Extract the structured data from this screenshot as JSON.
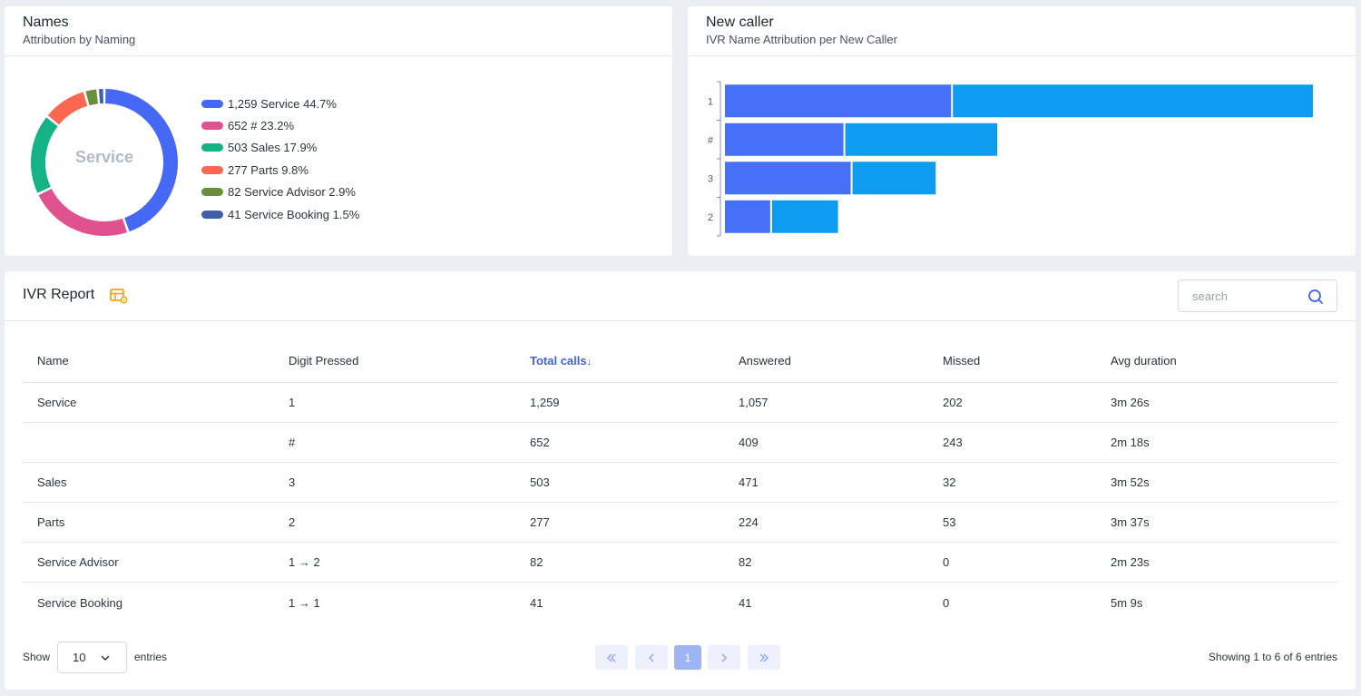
{
  "names_card": {
    "title": "Names",
    "subtitle": "Attribution by Naming",
    "donut_center_label": "Service",
    "legend": [
      {
        "label": "1,259 Service 44.7%",
        "color": "#4569f5"
      },
      {
        "label": "652 # 23.2%",
        "color": "#e0528e"
      },
      {
        "label": "503 Sales 17.9%",
        "color": "#15b286"
      },
      {
        "label": "277 Parts 9.8%",
        "color": "#fc6751"
      },
      {
        "label": "82 Service Advisor 2.9%",
        "color": "#6a8f3a"
      },
      {
        "label": "41 Service Booking 1.5%",
        "color": "#3d5ea8"
      }
    ]
  },
  "caller_card": {
    "title": "New caller",
    "subtitle": "IVR Name Attribution per New Caller"
  },
  "report": {
    "title": "IVR Report",
    "search_placeholder": "search",
    "columns": [
      "Name",
      "Digit Pressed",
      "Total calls",
      "Answered",
      "Missed",
      "Avg duration"
    ],
    "sort_indicator": "↓",
    "rows": [
      [
        "Service",
        "1",
        "1,259",
        "1,057",
        "202",
        "3m 26s"
      ],
      [
        "",
        "#",
        "652",
        "409",
        "243",
        "2m 18s"
      ],
      [
        "Sales",
        "3",
        "503",
        "471",
        "32",
        "3m 52s"
      ],
      [
        "Parts",
        "2",
        "277",
        "224",
        "53",
        "3m 37s"
      ],
      [
        "Service Advisor",
        "1 → 2",
        "82",
        "82",
        "0",
        "2m 23s"
      ],
      [
        "Service Booking",
        "1 → 1",
        "41",
        "41",
        "0",
        "5m 9s"
      ]
    ],
    "footer": {
      "show_label": "Show",
      "page_size": "10",
      "entries_label": "entries",
      "current_page": "1",
      "info": "Showing 1 to 6 of 6 entries"
    }
  },
  "chart_data": [
    {
      "type": "pie",
      "labels": [
        "Service",
        "#",
        "Sales",
        "Parts",
        "Service Advisor",
        "Service Booking"
      ],
      "values": [
        1259,
        652,
        503,
        277,
        82,
        41
      ],
      "percent": [
        44.7,
        23.2,
        17.9,
        9.8,
        2.9,
        1.5
      ],
      "colors": [
        "#4569f5",
        "#e0528e",
        "#15b286",
        "#fc6751",
        "#6a8f3a",
        "#3d5ea8"
      ],
      "legend_position": "right"
    },
    {
      "type": "bar",
      "orientation": "horizontal",
      "stacked": true,
      "categories": [
        "1",
        "#",
        "3",
        "2"
      ],
      "series": [
        {
          "values": [
            252,
            133,
            141,
            52
          ],
          "color": "#4670f6"
        },
        {
          "values": [
            400,
            170,
            94,
            75
          ],
          "color": "#0e9cf0"
        }
      ],
      "xlim": [
        0,
        652
      ]
    }
  ]
}
